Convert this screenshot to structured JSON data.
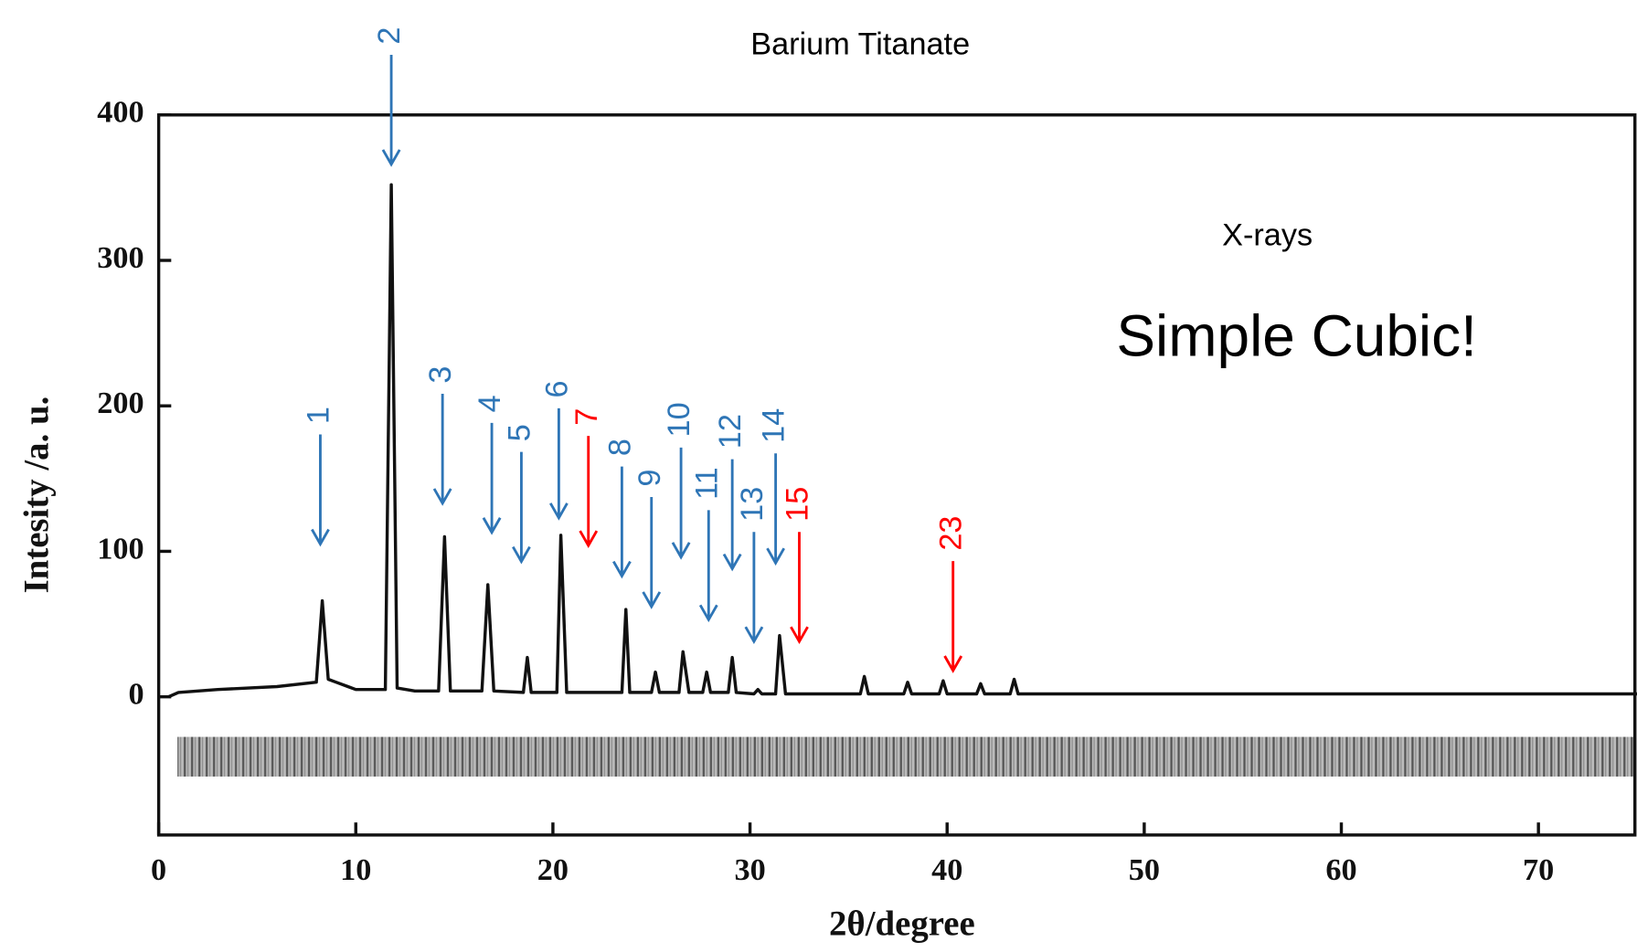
{
  "chart_data": {
    "type": "line",
    "title": "Barium Titanate",
    "xlabel": "2θ/degree",
    "ylabel": "Intesity /a. u.",
    "texts": [
      "X-rays",
      "Simple Cubic!"
    ],
    "xlim": [
      0,
      75
    ],
    "ylim": [
      -95,
      400
    ],
    "xticks": [
      0,
      10,
      20,
      30,
      40,
      50,
      60,
      70
    ],
    "yticks": [
      0,
      100,
      200,
      300,
      400
    ],
    "series": [
      {
        "color": "#111111",
        "x": [
          0.5,
          1,
          3,
          6,
          8,
          8.3,
          8.6,
          9,
          10,
          11.5,
          11.8,
          12.1,
          13,
          14.2,
          14.5,
          14.8,
          16.4,
          16.7,
          17,
          18.5,
          18.7,
          18.9,
          20.2,
          20.4,
          20.7,
          23.5,
          23.7,
          23.9,
          25,
          25.2,
          25.4,
          26.4,
          26.6,
          26.9,
          27.6,
          27.8,
          28,
          28.9,
          29.1,
          29.3,
          30.2,
          30.4,
          30.6,
          31.3,
          31.5,
          31.8,
          35.6,
          35.8,
          36,
          37.8,
          38,
          38.2,
          39.6,
          39.8,
          40,
          41.5,
          41.7,
          41.9,
          43.2,
          43.4,
          43.6,
          50,
          75
        ],
        "values": [
          0,
          3,
          5,
          7,
          10,
          66,
          12,
          10,
          5,
          5,
          352,
          6,
          4,
          4,
          110,
          4,
          4,
          77,
          4,
          3,
          27,
          3,
          3,
          111,
          3,
          3,
          60,
          3,
          3,
          17,
          3,
          3,
          31,
          3,
          3,
          17,
          3,
          3,
          27,
          3,
          2,
          5,
          2,
          2,
          42,
          2,
          2,
          14,
          2,
          2,
          10,
          2,
          2,
          11,
          2,
          2,
          9,
          2,
          2,
          12,
          2,
          2,
          2
        ]
      }
    ],
    "annotations": [
      {
        "label": "1",
        "x": 8.2,
        "y": 105,
        "color": "#2e75b6"
      },
      {
        "label": "2",
        "x": 11.8,
        "y": 366,
        "color": "#2e75b6"
      },
      {
        "label": "3",
        "x": 14.4,
        "y": 133,
        "color": "#2e75b6"
      },
      {
        "label": "4",
        "x": 16.9,
        "y": 113,
        "color": "#2e75b6"
      },
      {
        "label": "5",
        "x": 18.4,
        "y": 93,
        "color": "#2e75b6"
      },
      {
        "label": "6",
        "x": 20.3,
        "y": 123,
        "color": "#2e75b6"
      },
      {
        "label": "7",
        "x": 21.8,
        "y": 104,
        "color": "#ff0000"
      },
      {
        "label": "8",
        "x": 23.5,
        "y": 83,
        "color": "#2e75b6"
      },
      {
        "label": "9",
        "x": 25.0,
        "y": 62,
        "color": "#2e75b6"
      },
      {
        "label": "10",
        "x": 26.5,
        "y": 96,
        "color": "#2e75b6"
      },
      {
        "label": "11",
        "x": 27.9,
        "y": 53,
        "color": "#2e75b6"
      },
      {
        "label": "12",
        "x": 29.1,
        "y": 88,
        "color": "#2e75b6"
      },
      {
        "label": "13",
        "x": 30.2,
        "y": 38,
        "color": "#2e75b6"
      },
      {
        "label": "14",
        "x": 31.3,
        "y": 92,
        "color": "#2e75b6"
      },
      {
        "label": "15",
        "x": 32.5,
        "y": 38,
        "color": "#ff0000"
      },
      {
        "label": "23",
        "x": 40.3,
        "y": 18,
        "color": "#ff0000"
      }
    ]
  }
}
